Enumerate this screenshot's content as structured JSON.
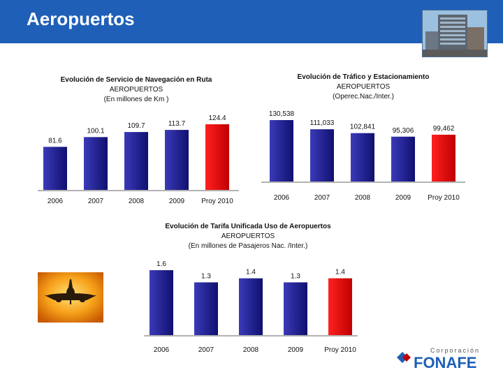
{
  "header": {
    "title": "Aeropuertos"
  },
  "logo": {
    "small_text": "Corporación",
    "brand": "FONAFE",
    "accent": "#1f5fb8"
  },
  "colors": {
    "bar_blue_dark": "#101070",
    "bar_blue_light": "#3a3ab8",
    "bar_red_dark": "#c00000",
    "bar_red_light": "#ff2020",
    "header_bg": "#1f5fb8"
  },
  "chart_data": [
    {
      "type": "bar",
      "title": "Evolución de Servicio de Navegación en Ruta",
      "subtitle": "AEROPUERTOS",
      "unit_note": "(En millones de Km )",
      "categories": [
        "2006",
        "2007",
        "2008",
        "2009",
        "Proy 2010"
      ],
      "values": [
        81.6,
        100.1,
        109.7,
        113.7,
        124.4
      ],
      "labels": [
        "81.6",
        "100.1",
        "109.7",
        "113.7",
        "124.4"
      ],
      "highlight_last": true
    },
    {
      "type": "bar",
      "title": "Evolución de Tráfico y Estacionamiento",
      "subtitle": "AEROPUERTOS",
      "unit_note": "(Operec.Nac./Inter.)",
      "categories": [
        "2006",
        "2007",
        "2008",
        "2009",
        "Proy 2010"
      ],
      "values": [
        130538,
        111033,
        102841,
        95306,
        99462
      ],
      "labels": [
        "130,538",
        "111,033",
        "102,841",
        "95,306",
        "99,462"
      ],
      "highlight_last": true
    },
    {
      "type": "bar",
      "title": "Evolución de Tarifa Unificada Uso de Aeropuertos",
      "subtitle": "AEROPUERTOS",
      "unit_note": "(En millones de Pasajeros Nac. /Inter.)",
      "categories": [
        "2006",
        "2007",
        "2008",
        "2009",
        "Proy 2010"
      ],
      "values": [
        1.6,
        1.3,
        1.4,
        1.3,
        1.4
      ],
      "labels": [
        "1.6",
        "1.3",
        "1.4",
        "1.3",
        "1.4"
      ],
      "highlight_last": true
    }
  ]
}
